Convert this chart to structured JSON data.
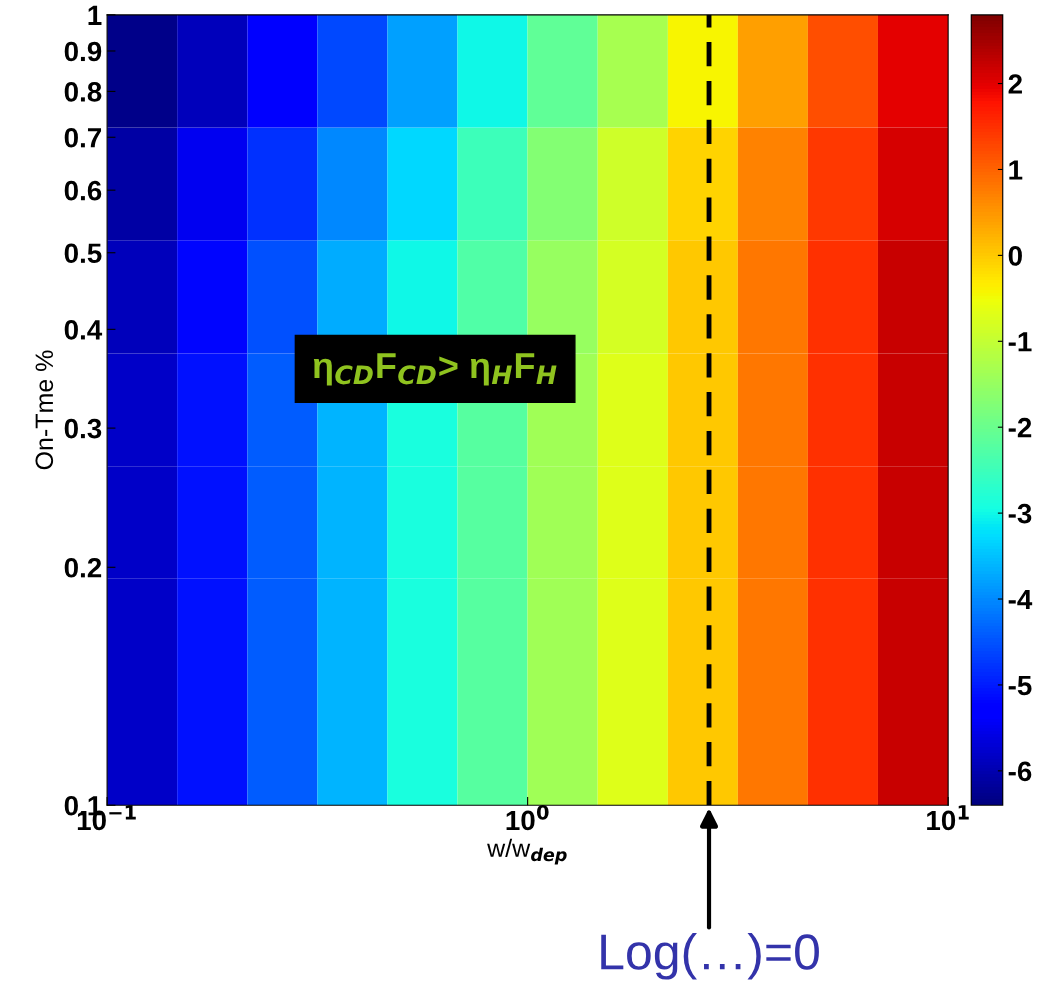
{
  "chart_data": {
    "type": "heatmap",
    "xlabel": "w/w$_{dep}$",
    "ylabel": "On-Tme %",
    "x": [
      0.121,
      0.178,
      0.261,
      0.383,
      0.562,
      0.825,
      1.21,
      1.78,
      2.61,
      3.83,
      5.62,
      8.25
    ],
    "y": [
      0.849,
      0.611,
      0.44,
      0.316,
      0.228,
      0.164,
      0.118
    ],
    "cells": [
      [
        -6.3,
        -5.9,
        -5.3,
        -4.6,
        -3.8,
        -3.0,
        -2.1,
        -1.3,
        -0.4,
        0.4,
        1.2,
        2.0
      ],
      [
        -6.1,
        -5.5,
        -4.8,
        -4.0,
        -3.3,
        -2.5,
        -1.7,
        -0.9,
        -0.1,
        0.7,
        1.4,
        2.1
      ],
      [
        -5.9,
        -5.2,
        -4.5,
        -3.7,
        -3.0,
        -2.3,
        -1.5,
        -0.8,
        0.0,
        0.8,
        1.5,
        2.2
      ],
      [
        -5.8,
        -5.1,
        -4.4,
        -3.6,
        -2.9,
        -2.2,
        -1.4,
        -0.7,
        0.0,
        0.8,
        1.5,
        2.2
      ],
      [
        -5.8,
        -5.1,
        -4.4,
        -3.6,
        -2.9,
        -2.2,
        -1.4,
        -0.7,
        0.0,
        0.8,
        1.5,
        2.2
      ],
      [
        -5.8,
        -5.1,
        -4.4,
        -3.6,
        -2.9,
        -2.2,
        -1.4,
        -0.7,
        0.0,
        0.8,
        1.5,
        2.2
      ],
      [
        -5.8,
        -5.1,
        -4.4,
        -3.6,
        -2.9,
        -2.2,
        -1.4,
        -0.7,
        0.0,
        0.8,
        1.5,
        2.2
      ]
    ],
    "log": "xy",
    "xlim": [
      0.1,
      10
    ],
    "ylim": [
      0.1,
      1
    ],
    "xticks": [
      {
        "value": 0.1,
        "label": "10$^{−1}$"
      },
      {
        "value": 1,
        "label": "10$^{0}$"
      },
      {
        "value": 10,
        "label": "10$^{1}$"
      }
    ],
    "yticks": [
      0.1,
      0.2,
      0.3,
      0.4,
      0.5,
      0.6,
      0.7,
      0.8,
      0.9,
      1
    ],
    "clim": [
      -6.4,
      2.8
    ],
    "cticks": [
      -6,
      -5,
      -4,
      -3,
      -2,
      -1,
      0,
      1,
      2
    ],
    "ref_lines": [
      {
        "axis": "x",
        "value": 2.7,
        "color": "#000000",
        "line_style": "dashed"
      }
    ],
    "annotations": [
      "η$_{CD}$F$_{CD}$> η$_{H}$F$_{H}$",
      {
        "text": "Log(…)=0",
        "x": 2.7,
        "y": 0.1
      }
    ],
    "grid": false
  }
}
